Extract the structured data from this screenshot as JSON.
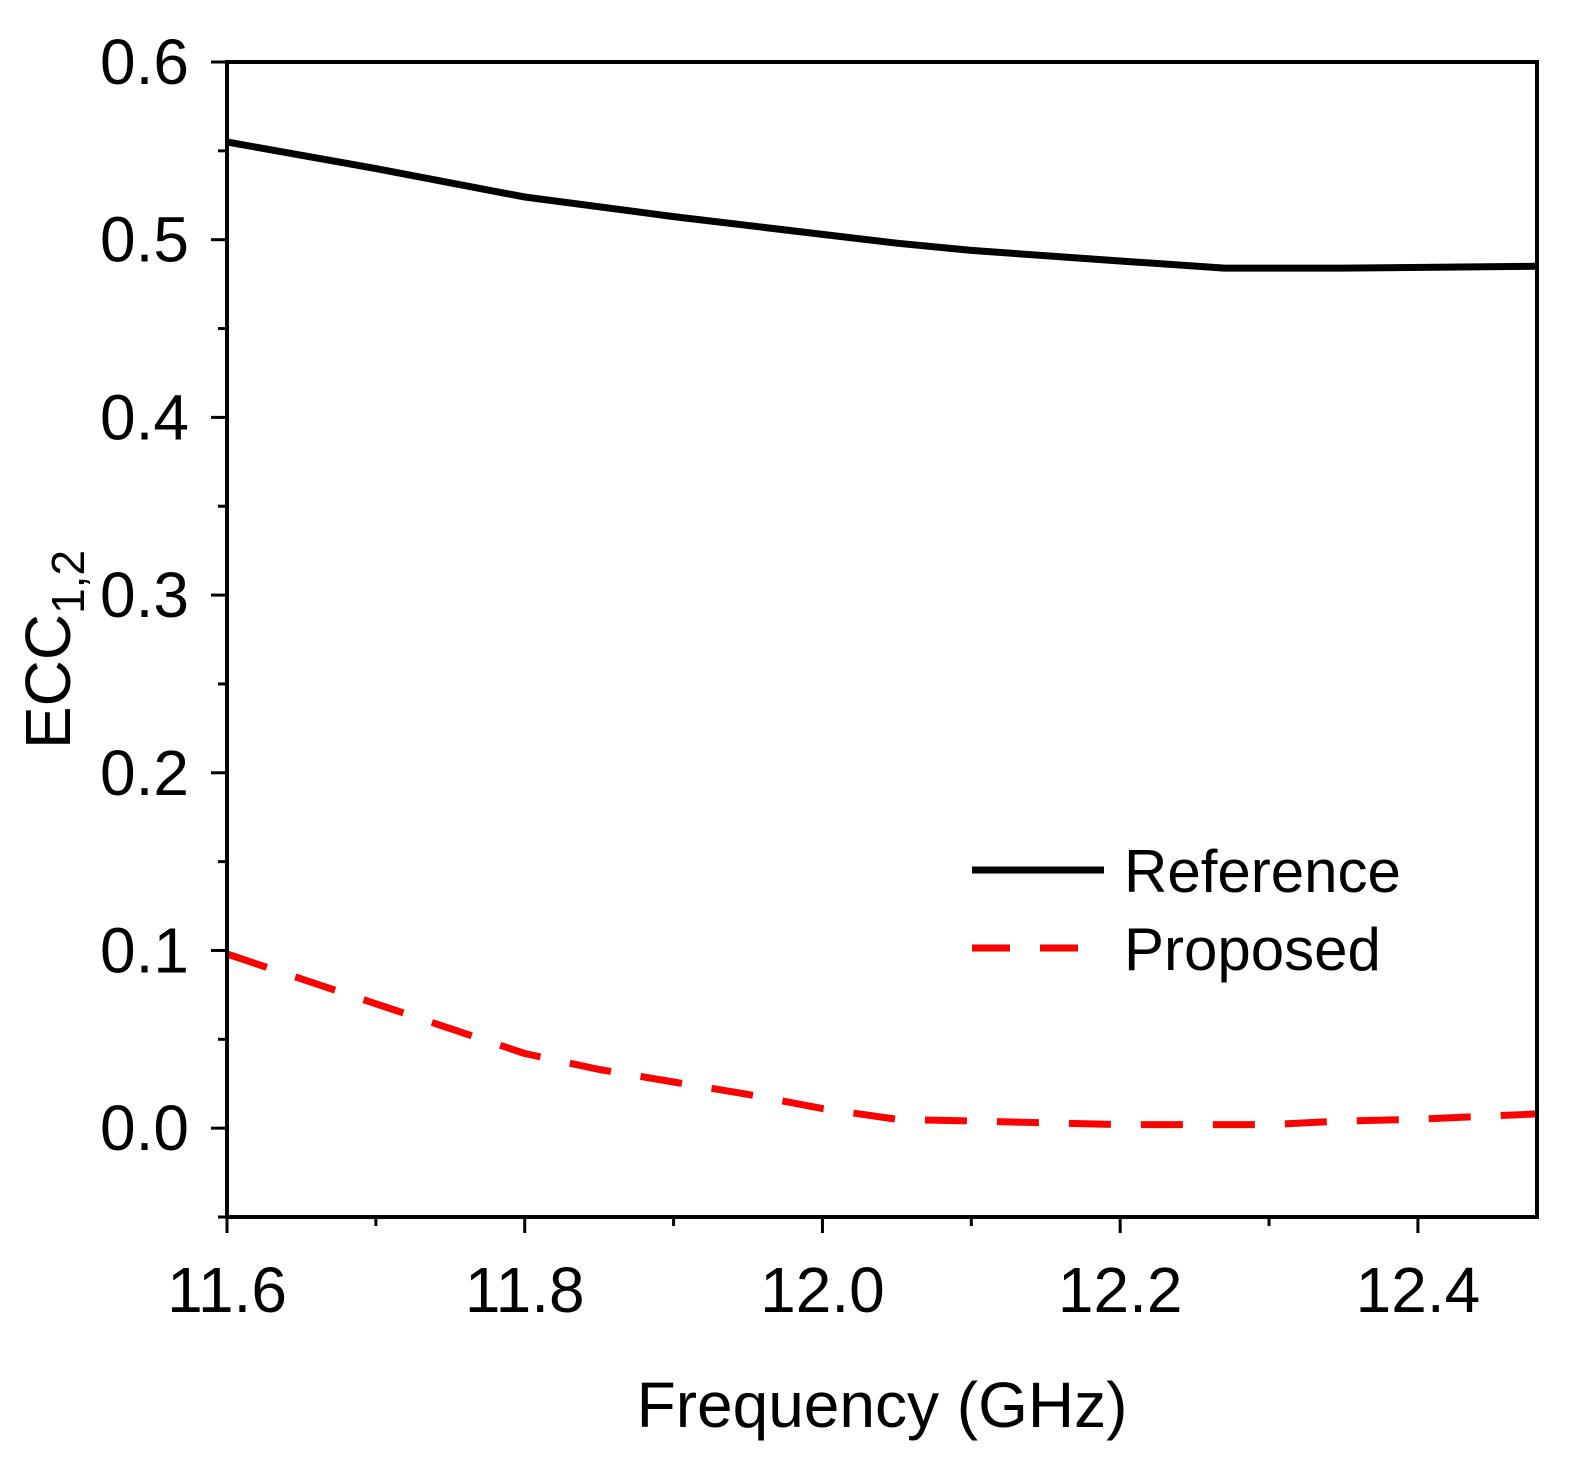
{
  "chart_data": {
    "type": "line",
    "title": "",
    "xlabel": "Frequency (GHz)",
    "ylabel": {
      "base": "ECC",
      "subscript": "1,2"
    },
    "xlim": [
      11.6,
      12.48
    ],
    "ylim": [
      -0.05,
      0.6
    ],
    "xticks": [
      11.6,
      11.8,
      12.0,
      12.2,
      12.4
    ],
    "xtick_labels": [
      "11.6",
      "11.8",
      "12.0",
      "12.2",
      "12.4"
    ],
    "xminor": [
      11.7,
      11.9,
      12.1,
      12.3
    ],
    "yticks": [
      0.0,
      0.1,
      0.2,
      0.3,
      0.4,
      0.5,
      0.6
    ],
    "ytick_labels": [
      "0.0",
      "0.1",
      "0.2",
      "0.3",
      "0.4",
      "0.5",
      "0.6"
    ],
    "yminor": [
      -0.05,
      0.05,
      0.15,
      0.25,
      0.35,
      0.45,
      0.55
    ],
    "grid": false,
    "legend_position": "lower-right",
    "series": [
      {
        "name": "Reference",
        "color": "#000000",
        "style": "solid",
        "x": [
          11.6,
          11.7,
          11.8,
          11.9,
          12.0,
          12.05,
          12.1,
          12.2,
          12.27,
          12.35,
          12.48
        ],
        "y": [
          0.555,
          0.54,
          0.524,
          0.513,
          0.503,
          0.498,
          0.494,
          0.488,
          0.484,
          0.484,
          0.485
        ]
      },
      {
        "name": "Proposed",
        "color": "#ff0000",
        "style": "dashed",
        "x": [
          11.6,
          11.65,
          11.7,
          11.75,
          11.8,
          11.85,
          11.9,
          11.95,
          12.0,
          12.05,
          12.1,
          12.15,
          12.2,
          12.25,
          12.3,
          12.35,
          12.4,
          12.48
        ],
        "y": [
          0.098,
          0.084,
          0.07,
          0.056,
          0.042,
          0.033,
          0.026,
          0.019,
          0.011,
          0.005,
          0.004,
          0.003,
          0.002,
          0.002,
          0.002,
          0.004,
          0.005,
          0.008
        ]
      }
    ]
  }
}
